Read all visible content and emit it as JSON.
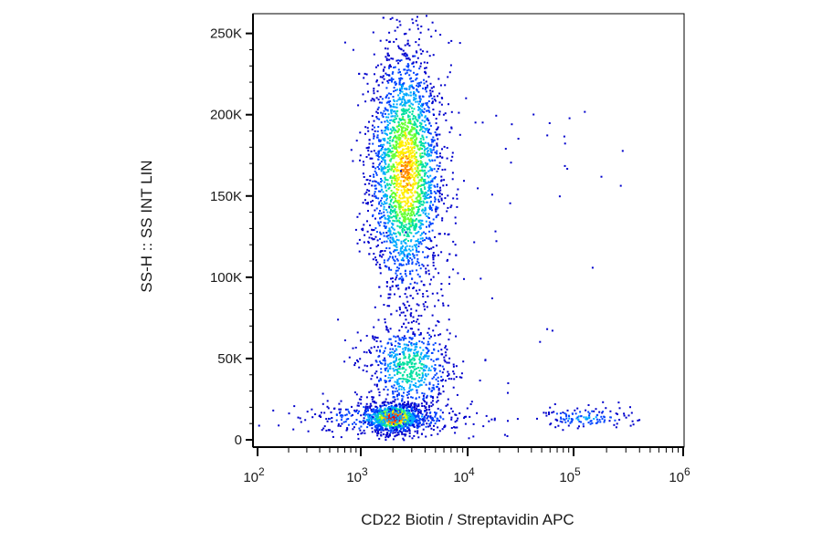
{
  "chart_data": {
    "type": "scatter",
    "subtype": "flow-cytometry-density-dot-plot",
    "title": "",
    "xlabel": "CD22 Biotin / Streptavidin APC",
    "ylabel": "SS-H :: SS INT LIN",
    "x_scale": "biexponential-log",
    "x_ticks": [
      {
        "value": 100,
        "base": "10",
        "exp": "2"
      },
      {
        "value": 1000,
        "base": "10",
        "exp": "3"
      },
      {
        "value": 10000,
        "base": "10",
        "exp": "4"
      },
      {
        "value": 100000,
        "base": "10",
        "exp": "5"
      },
      {
        "value": 1000000,
        "base": "10",
        "exp": "6"
      }
    ],
    "y_scale": "linear",
    "ylim": [
      0,
      262144
    ],
    "y_ticks": [
      {
        "value": 0,
        "label": "0"
      },
      {
        "value": 50000,
        "label": "50K"
      },
      {
        "value": 100000,
        "label": "100K"
      },
      {
        "value": 150000,
        "label": "150K"
      },
      {
        "value": 200000,
        "label": "200K"
      },
      {
        "value": 250000,
        "label": "250K"
      }
    ],
    "grid": false,
    "legend": "none",
    "colormap": [
      "#0000cc",
      "#0044ff",
      "#00aaff",
      "#00e0a0",
      "#66ff33",
      "#ffee00",
      "#ff8800",
      "#ff0000"
    ],
    "populations": [
      {
        "name_hidden": true,
        "x_center": 2000,
        "x_spread_decades": 0.13,
        "y_center": 14000,
        "y_spread": 4500,
        "n": 900,
        "peak": 1.0
      },
      {
        "name_hidden": true,
        "x_center": 2600,
        "x_spread_decades": 0.17,
        "y_center": 165000,
        "y_spread": 38000,
        "n": 2600,
        "peak": 0.75
      },
      {
        "name_hidden": true,
        "x_center": 2800,
        "x_spread_decades": 0.2,
        "y_center": 45000,
        "y_spread": 14000,
        "n": 650,
        "peak": 0.45
      },
      {
        "name_hidden": true,
        "x_center": 1800,
        "x_spread_decades": 0.4,
        "y_center": 14000,
        "y_spread": 5000,
        "n": 400,
        "peak": 0.3
      },
      {
        "name_hidden": true,
        "x_center": 120000,
        "x_spread_decades": 0.22,
        "y_center": 14000,
        "y_spread": 3500,
        "n": 130,
        "peak": 0.25
      },
      {
        "name_hidden": true,
        "x_center": 15000,
        "x_spread_decades": 0.5,
        "y_center": 100000,
        "y_spread": 80000,
        "n": 70,
        "peak": 0.05
      }
    ]
  }
}
